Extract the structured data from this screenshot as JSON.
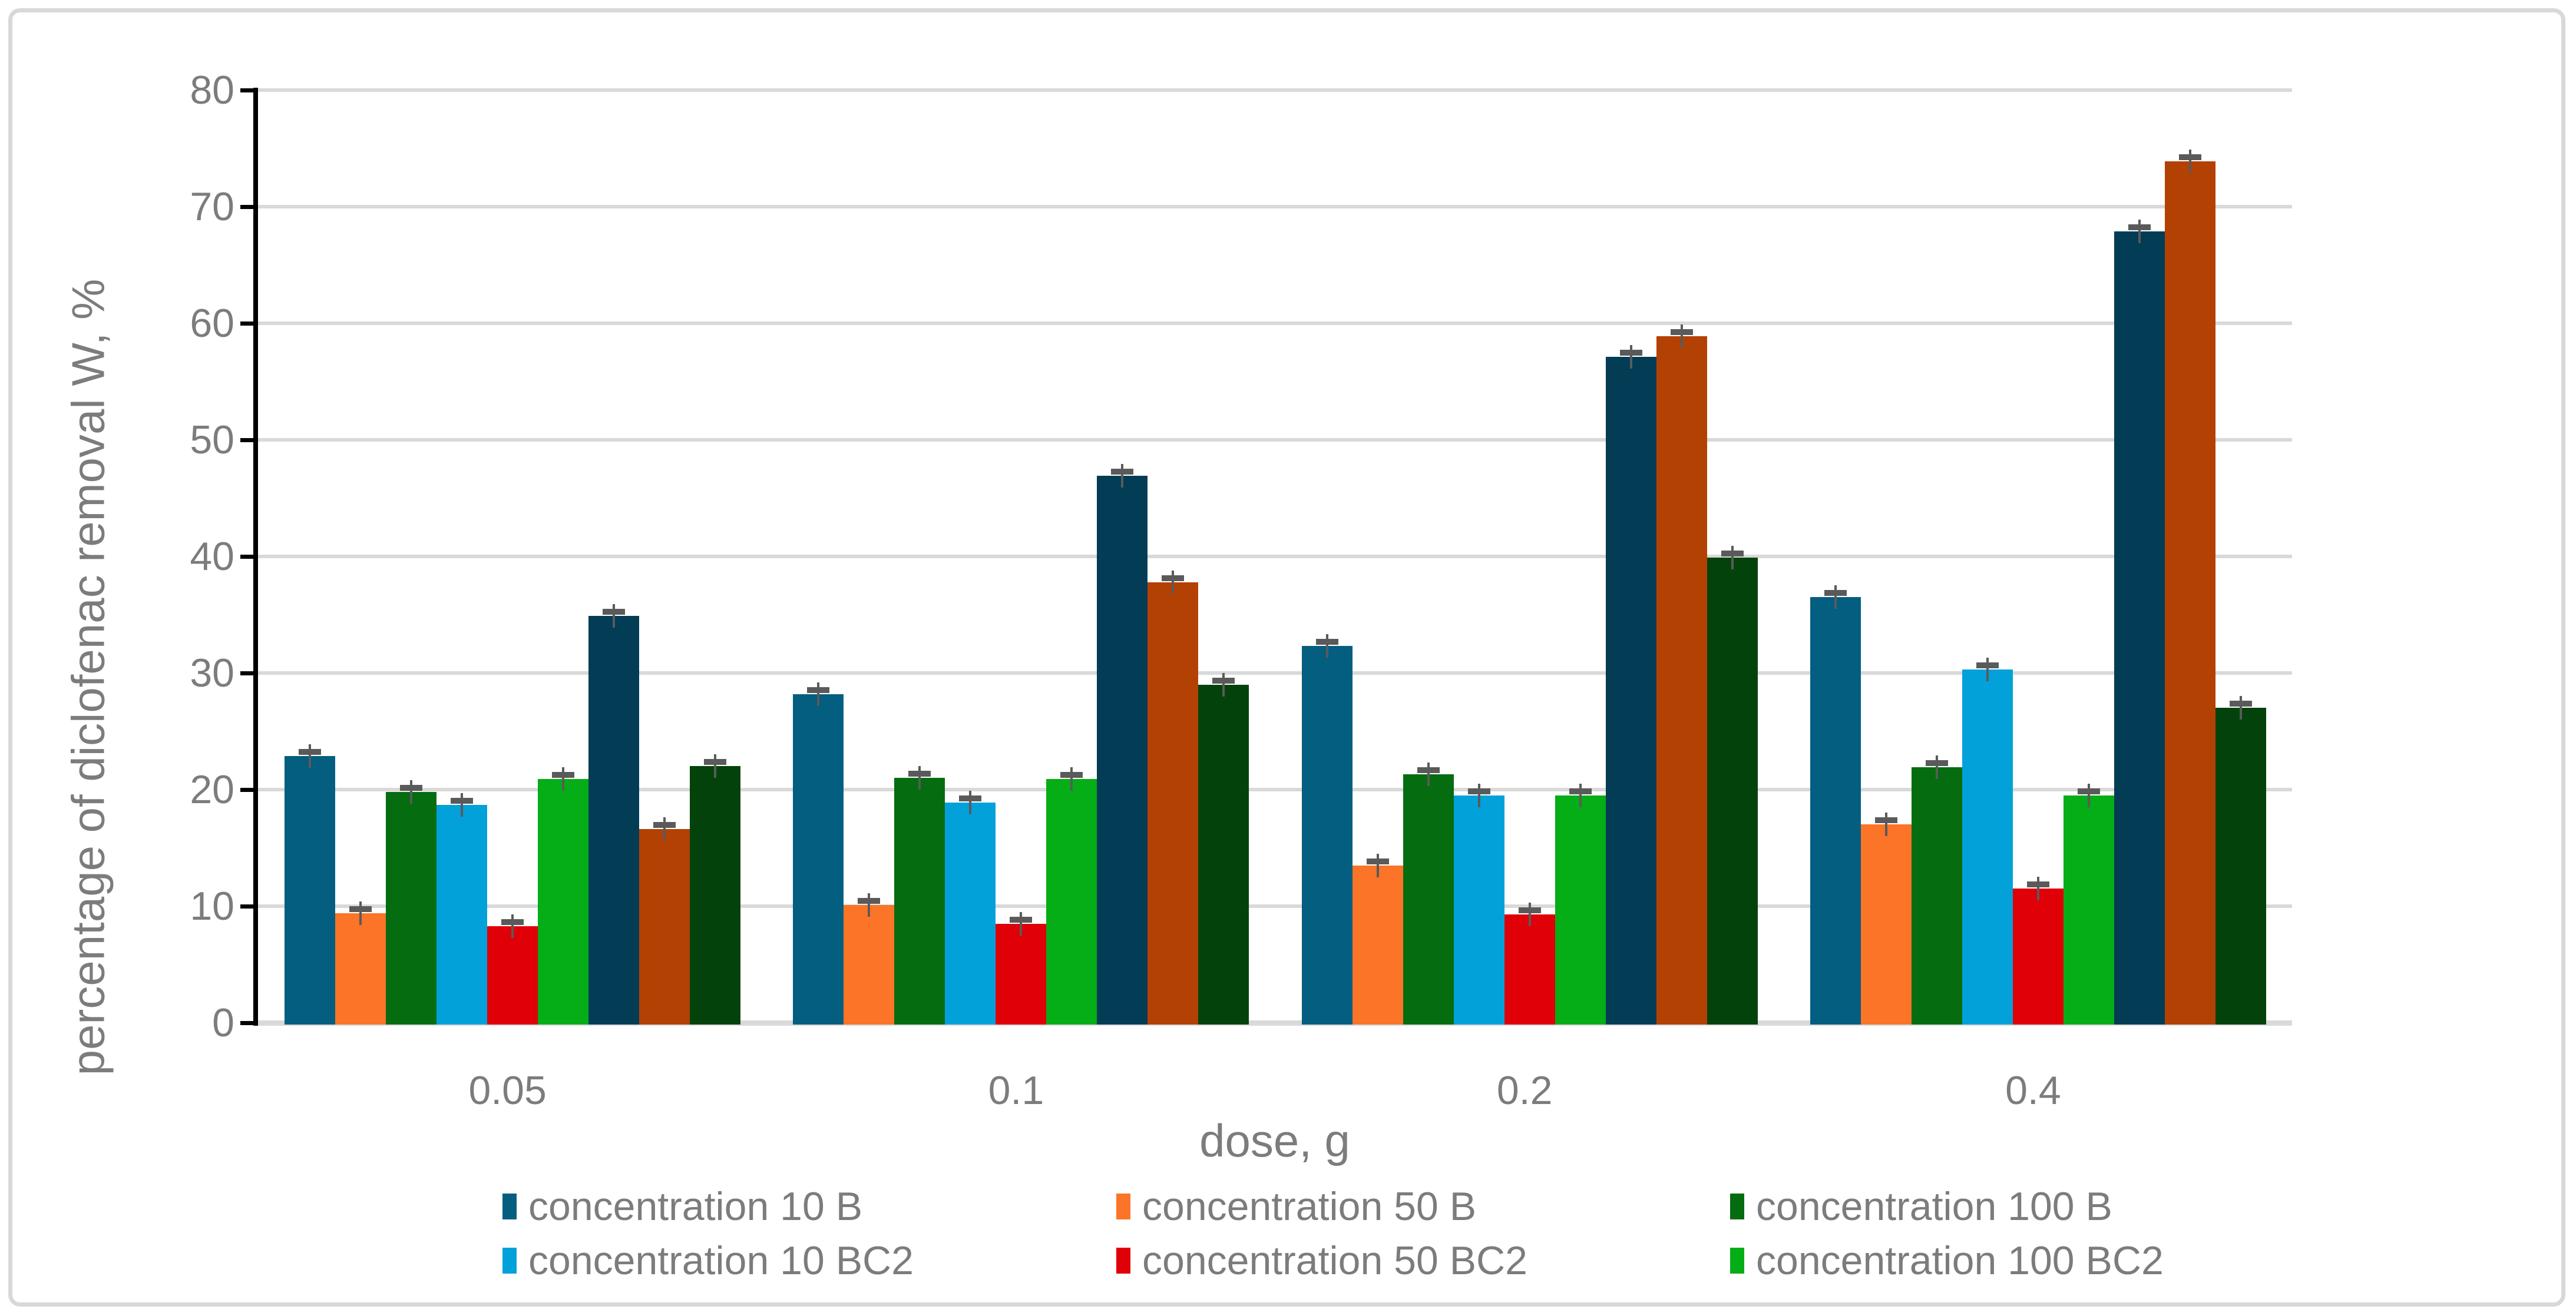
{
  "chart_data": {
    "type": "bar",
    "title": "",
    "xlabel": "dose, g",
    "ylabel": "percentage of diclofenac removal W, %",
    "ylim": [
      0,
      80
    ],
    "ytick_step": 10,
    "yticks": [
      "0",
      "10",
      "20",
      "30",
      "40",
      "50",
      "60",
      "70",
      "80"
    ],
    "grid": "horizontal",
    "legend_position": "bottom",
    "categories": [
      "0.05",
      "0.1",
      "0.2",
      "0.4"
    ],
    "series": [
      {
        "name": "concentration 10 B",
        "color": "#035E80",
        "in_legend": true,
        "values": [
          22.9,
          28.2,
          32.3,
          36.5
        ]
      },
      {
        "name": "concentration 50 B",
        "color": "#FB7428",
        "in_legend": true,
        "values": [
          9.4,
          10.1,
          13.5,
          17.0
        ]
      },
      {
        "name": "concentration 100 B",
        "color": "#056C10",
        "in_legend": true,
        "values": [
          19.8,
          21.0,
          21.3,
          21.9
        ]
      },
      {
        "name": "concentration 10 BC2",
        "color": "#02A1DA",
        "in_legend": true,
        "values": [
          18.7,
          18.9,
          19.5,
          30.3
        ]
      },
      {
        "name": "concentration 50 BC2",
        "color": "#DF0008",
        "in_legend": true,
        "values": [
          8.3,
          8.5,
          9.3,
          11.5
        ]
      },
      {
        "name": "concentration 100 BC2",
        "color": "#05AD16",
        "in_legend": true,
        "values": [
          20.9,
          20.9,
          19.5,
          19.5
        ]
      },
      {
        "name": "",
        "color": "#023C55",
        "in_legend": false,
        "values": [
          34.9,
          46.9,
          57.1,
          67.9
        ]
      },
      {
        "name": "",
        "color": "#B34104",
        "in_legend": false,
        "values": [
          16.6,
          37.8,
          58.9,
          73.9
        ]
      },
      {
        "name": "",
        "color": "#03430B",
        "in_legend": false,
        "values": [
          22.0,
          29.0,
          39.9,
          27.0
        ]
      }
    ],
    "error_bars": true,
    "error_value": 0.3,
    "colors": {
      "axis_text": "#7C7C7C",
      "gridline": "#D9D9D9",
      "axis_line": "#000000",
      "error_bar": "#5A5A5A",
      "frame_border": "#D8D8D8",
      "background": "#FFFFFF"
    }
  }
}
